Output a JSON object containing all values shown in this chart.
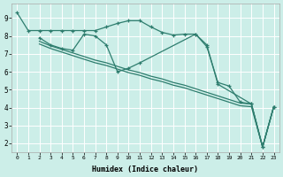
{
  "xlabel": "Humidex (Indice chaleur)",
  "bg_color": "#cceee8",
  "grid_color": "#ffffff",
  "line_color": "#2e7d6e",
  "xlim": [
    -0.5,
    23.5
  ],
  "ylim": [
    1.5,
    9.8
  ],
  "line1_x": [
    0,
    1,
    2,
    3,
    4,
    5,
    6,
    7,
    8,
    9,
    10,
    11,
    12,
    13,
    14,
    15,
    16,
    17,
    18,
    21,
    22,
    23
  ],
  "line1_y": [
    9.3,
    8.3,
    8.3,
    8.3,
    8.3,
    8.3,
    8.3,
    8.3,
    8.5,
    8.7,
    8.85,
    8.85,
    8.5,
    8.2,
    8.05,
    8.1,
    8.1,
    7.5,
    5.3,
    4.2,
    1.8,
    4.05
  ],
  "line2_x": [
    2,
    3,
    4,
    5,
    6,
    7,
    8,
    9,
    10,
    11,
    16,
    17,
    18,
    19,
    20,
    21,
    22,
    23
  ],
  "line2_y": [
    7.9,
    7.5,
    7.3,
    7.2,
    8.1,
    8.0,
    7.5,
    6.0,
    6.2,
    6.5,
    8.1,
    7.4,
    5.4,
    5.2,
    4.3,
    4.2,
    1.8,
    4.05
  ],
  "line3_x": [
    2,
    3,
    4,
    5,
    6,
    7,
    8,
    9,
    10,
    11,
    12,
    13,
    14,
    15,
    16,
    17,
    18,
    19,
    20,
    21,
    22,
    23
  ],
  "line3_y": [
    7.7,
    7.45,
    7.25,
    7.05,
    6.85,
    6.65,
    6.5,
    6.3,
    6.1,
    5.95,
    5.75,
    5.6,
    5.4,
    5.25,
    5.05,
    4.85,
    4.65,
    4.45,
    4.25,
    4.2,
    1.8,
    4.05
  ],
  "line4_x": [
    2,
    3,
    4,
    5,
    6,
    7,
    8,
    9,
    10,
    11,
    12,
    13,
    14,
    15,
    16,
    17,
    18,
    19,
    20,
    21,
    22,
    23
  ],
  "line4_y": [
    7.55,
    7.3,
    7.1,
    6.9,
    6.7,
    6.5,
    6.35,
    6.15,
    5.95,
    5.8,
    5.6,
    5.45,
    5.25,
    5.1,
    4.9,
    4.7,
    4.5,
    4.3,
    4.1,
    4.05,
    1.8,
    4.05
  ],
  "xticks": [
    0,
    1,
    2,
    3,
    4,
    5,
    6,
    7,
    8,
    9,
    10,
    11,
    12,
    13,
    14,
    15,
    16,
    17,
    18,
    19,
    20,
    21,
    22,
    23
  ],
  "yticks": [
    2,
    3,
    4,
    5,
    6,
    7,
    8,
    9
  ]
}
